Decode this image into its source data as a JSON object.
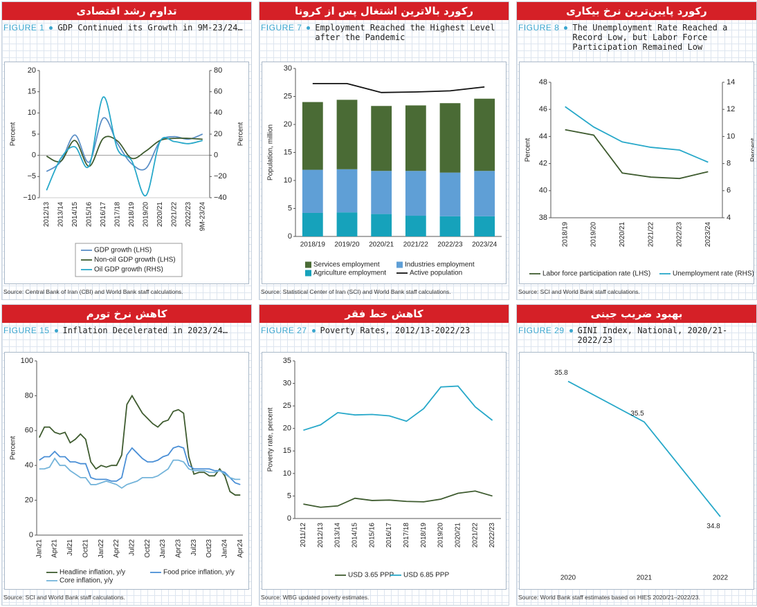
{
  "chart_data": [
    {
      "type": "line",
      "header": "تداوم رشد اقتصادی",
      "figure": "FIGURE 1",
      "title": "GDP Continued its Growth in 9M-23/24…",
      "source": "Source: Central Bank of Iran (CBI) and World Bank staff calculations.",
      "smooth": true,
      "categories": [
        "2012/13",
        "2013/14",
        "2014/15",
        "2015/16",
        "2016/17",
        "2017/18",
        "2018/19",
        "2019/20",
        "2020/21",
        "2021/22",
        "2022/23",
        "9M-23/24"
      ],
      "series": [
        {
          "name": "GDP growth (LHS)",
          "color": "#5b8fc7",
          "values": [
            -3.8,
            -1.5,
            4.8,
            -1.6,
            8.8,
            2.8,
            -2.0,
            -3.1,
            3.3,
            4.4,
            3.8,
            5.0
          ]
        },
        {
          "name": "Non-oil GDP growth (LHS)",
          "color": "#3e5b2f",
          "values": [
            -0.2,
            -1.4,
            3.5,
            -2.6,
            4.0,
            3.4,
            -0.7,
            1.0,
            3.5,
            4.0,
            4.0,
            3.8
          ]
        },
        {
          "name": "Oil GDP growth (RHS)",
          "color": "#27a8c9",
          "axis": "y2",
          "values": [
            -33,
            -3,
            8,
            -10,
            55,
            6,
            -5,
            -38,
            13,
            13,
            11,
            14
          ]
        }
      ],
      "y_label": "Percent",
      "y2_label": "Percent",
      "ylim": [
        -10,
        20
      ],
      "yticks": [
        {
          "value": -10,
          "label": "−10"
        },
        {
          "value": -5,
          "label": "−5"
        },
        0,
        5,
        10,
        15,
        20
      ],
      "y2lim": [
        -40,
        80
      ],
      "y2ticks": [
        {
          "value": -40,
          "label": "−40"
        },
        {
          "value": -20,
          "label": "−20"
        },
        0,
        20,
        40,
        60,
        80
      ]
    },
    {
      "type": "bar",
      "header": "رکورد بالاترین اشتغال پس از کرونا",
      "figure": "FIGURE 7",
      "title": "Employment Reached the Highest Level after the Pandemic",
      "source": "Source:  Statistical Center of Iran (SCI) and World Bank staff calculations.",
      "stacked": true,
      "categories": [
        "2018/19",
        "2019/20",
        "2020/21",
        "2021/22",
        "2022/23",
        "2023/24"
      ],
      "series": [
        {
          "name": "Services employment",
          "color": "#4a6b35",
          "values": [
            12.1,
            12.4,
            11.6,
            11.7,
            12.4,
            12.9
          ]
        },
        {
          "name": "Industries employment",
          "color": "#5f9fd6",
          "values": [
            7.7,
            7.7,
            7.7,
            8.0,
            7.8,
            8.1
          ]
        },
        {
          "name": "Agriculture employment",
          "color": "#16a2bb",
          "values": [
            4.2,
            4.3,
            4.0,
            3.7,
            3.6,
            3.6
          ]
        },
        {
          "name": "Active population",
          "color": "#111111",
          "type": "line",
          "values": [
            27.3,
            27.3,
            25.7,
            25.8,
            26.0,
            26.7
          ]
        }
      ],
      "y_label": "Population, million",
      "ylim": [
        0,
        30
      ],
      "yticks": [
        0,
        5,
        10,
        15,
        20,
        25,
        30
      ]
    },
    {
      "type": "line",
      "header": "رکورد پایین‌ترین نرخ بیکاری",
      "figure": "FIGURE 8",
      "title": "The Unemployment Rate Reached a Record Low, but Labor Force Participation Remained Low",
      "source": "Source: SCI and World Bank staff calculations.",
      "categories": [
        "2018/19",
        "2019/20",
        "2020/21",
        "2021/22",
        "2022/23",
        "2023/24"
      ],
      "series": [
        {
          "name": "Labor force participation rate (LHS)",
          "color": "#3e5b2f",
          "values": [
            44.5,
            44.1,
            41.3,
            41.0,
            40.9,
            41.4
          ]
        },
        {
          "name": "Unemployment rate (RHS)",
          "color": "#27a8c9",
          "axis": "y2",
          "values": [
            12.2,
            10.7,
            9.6,
            9.2,
            9.0,
            8.1
          ]
        }
      ],
      "y_label": "Percent",
      "y2_label": "Percent",
      "ylim": [
        38,
        48
      ],
      "yticks": [
        38,
        40,
        42,
        44,
        46,
        48
      ],
      "y2lim": [
        4,
        14
      ],
      "y2ticks": [
        4,
        6,
        8,
        10,
        12,
        14
      ]
    },
    {
      "type": "line",
      "header": "کاهش نرخ تورم",
      "figure": "FIGURE 15",
      "title": "Inflation Decelerated in 2023/24…",
      "source": "Source: SCI and World Bank staff calculations.",
      "categories": [
        "Jan21",
        null,
        null,
        "Apr21",
        null,
        null,
        "Jul21",
        null,
        null,
        "Oct21",
        null,
        null,
        "Jan22",
        null,
        null,
        "Apr22",
        null,
        null,
        "Jul22",
        null,
        null,
        "Oct22",
        null,
        null,
        "Jan23",
        null,
        null,
        "Apr23",
        null,
        null,
        "Jul23",
        null,
        null,
        "Oct23",
        null,
        null,
        "Jan24",
        null,
        null,
        "Apr24"
      ],
      "series": [
        {
          "name": "Headline inflation, y/y",
          "color": "#3e5b2f",
          "values": [
            56,
            62,
            62,
            59,
            58,
            59,
            53,
            55,
            58,
            55,
            42,
            38,
            40,
            39,
            40,
            40,
            46,
            75,
            80,
            75,
            70,
            67,
            64,
            62,
            65,
            66,
            71,
            72,
            70,
            45,
            35,
            36,
            36,
            34,
            34,
            38,
            34,
            25,
            23,
            23
          ]
        },
        {
          "name": "Food price inflation, y/y",
          "color": "#4a8fd6",
          "values": [
            43,
            45,
            45,
            48,
            45,
            45,
            42,
            42,
            41,
            41,
            33,
            32,
            32,
            32,
            31,
            31,
            33,
            46,
            50,
            47,
            44,
            42,
            42,
            43,
            45,
            46,
            50,
            51,
            50,
            40,
            38,
            38,
            38,
            38,
            37,
            37,
            36,
            33,
            30,
            29
          ]
        },
        {
          "name": "Core inflation, y/y",
          "color": "#74b4da",
          "values": [
            38,
            38,
            39,
            44,
            40,
            40,
            37,
            35,
            33,
            33,
            29,
            29,
            30,
            31,
            30,
            29,
            27,
            29,
            30,
            31,
            33,
            33,
            33,
            34,
            36,
            38,
            43,
            43,
            42,
            38,
            37,
            37,
            37,
            36,
            36,
            37,
            35,
            33,
            32,
            32
          ]
        }
      ],
      "y_label": "Percent",
      "ylim": [
        0,
        100
      ],
      "yticks": [
        0,
        20,
        40,
        60,
        80,
        100
      ]
    },
    {
      "type": "line",
      "header": "کاهش خط فقر",
      "figure": "FIGURE 27",
      "title": "Poverty Rates, 2012/13-2022/23",
      "source": "Source: WBG updated poverty estimates.",
      "categories": [
        "2011/12",
        "2012/13",
        "2013/14",
        "2014/15",
        "2015/16",
        "2016/17",
        "2017/18",
        "2018/19",
        "2019/20",
        "2020/21",
        "2021/22",
        "2022/23"
      ],
      "series": [
        {
          "name": "USD 3.65 PPP",
          "color": "#3e5b2f",
          "values": [
            3.2,
            2.5,
            2.8,
            4.5,
            4.0,
            4.1,
            3.8,
            3.7,
            4.3,
            5.6,
            6.1,
            5.0
          ]
        },
        {
          "name": "USD 6.85 PPP",
          "color": "#27a8c9",
          "values": [
            19.6,
            20.8,
            23.5,
            23.0,
            23.1,
            22.8,
            21.6,
            24.4,
            29.2,
            29.4,
            24.8,
            21.8
          ]
        }
      ],
      "y_label": "Poverty rate, percent",
      "ylim": [
        0,
        35
      ],
      "yticks": [
        0,
        5,
        10,
        15,
        20,
        25,
        30,
        35
      ]
    },
    {
      "type": "line",
      "header": "بهبود ضریب جینی",
      "figure": "FIGURE 29",
      "title": "GINI Index, National, 2020/21-2022/23",
      "source": "Source: World Bank staff estimates based on HIES 2020/21–2022/23.",
      "categories": [
        "2020",
        "2021",
        "2022"
      ],
      "values": [
        35.8,
        35.5,
        34.8
      ],
      "color": "#27a8c9",
      "data_labels": true
    }
  ]
}
